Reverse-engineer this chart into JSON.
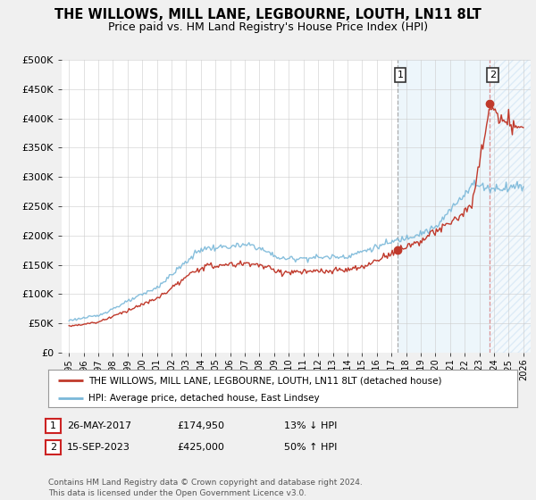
{
  "title": "THE WILLOWS, MILL LANE, LEGBOURNE, LOUTH, LN11 8LT",
  "subtitle": "Price paid vs. HM Land Registry's House Price Index (HPI)",
  "title_fontsize": 10.5,
  "subtitle_fontsize": 9,
  "ylabel_ticks": [
    "£0",
    "£50K",
    "£100K",
    "£150K",
    "£200K",
    "£250K",
    "£300K",
    "£350K",
    "£400K",
    "£450K",
    "£500K"
  ],
  "ytick_values": [
    0,
    50000,
    100000,
    150000,
    200000,
    250000,
    300000,
    350000,
    400000,
    450000,
    500000
  ],
  "ylim": [
    0,
    500000
  ],
  "xlim_start": 1995,
  "xlim_end": 2026,
  "xtick_years": [
    1995,
    1996,
    1997,
    1998,
    1999,
    2000,
    2001,
    2002,
    2003,
    2004,
    2005,
    2006,
    2007,
    2008,
    2009,
    2010,
    2011,
    2012,
    2013,
    2014,
    2015,
    2016,
    2017,
    2018,
    2019,
    2020,
    2021,
    2022,
    2023,
    2024,
    2025,
    2026
  ],
  "hpi_color": "#7ab8d9",
  "price_color": "#c0392b",
  "vline1_color": "#aaaaaa",
  "vline2_color": "#e8a0a0",
  "highlight_color": "#ddeeff",
  "legend_label_red": "THE WILLOWS, MILL LANE, LEGBOURNE, LOUTH, LN11 8LT (detached house)",
  "legend_label_blue": "HPI: Average price, detached house, East Lindsey",
  "annotation1_date": "26-MAY-2017",
  "annotation1_price": "£174,950",
  "annotation1_change": "13% ↓ HPI",
  "annotation2_date": "15-SEP-2023",
  "annotation2_price": "£425,000",
  "annotation2_change": "50% ↑ HPI",
  "footer": "Contains HM Land Registry data © Crown copyright and database right 2024.\nThis data is licensed under the Open Government Licence v3.0.",
  "background_color": "#f0f0f0",
  "plot_bg_color": "#ffffff",
  "grid_color": "#cccccc",
  "vline1_x": 2017.4,
  "vline2_x": 2023.7,
  "marker1_y": 174950,
  "marker2_y": 425000
}
